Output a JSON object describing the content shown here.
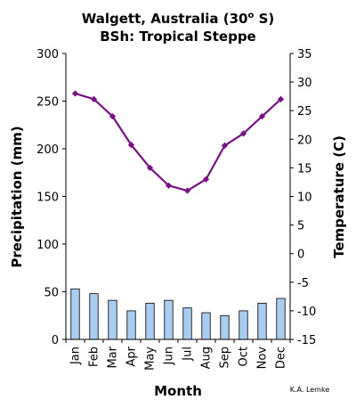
{
  "chart_data": {
    "type": "bar",
    "title_line1": "Walgett, Australia (30",
    "title_deg": "o",
    "title_line1_end": " S)",
    "title_line2": "BSh: Tropical Steppe",
    "xlabel": "Month",
    "ylabel_left": "Precipitation (mm)",
    "ylabel_right": "Temperature (C)",
    "credit": "K.A. Lemke",
    "categories": [
      "Jan",
      "Feb",
      "Mar",
      "Apr",
      "May",
      "Jun",
      "Jul",
      "Aug",
      "Sep",
      "Oct",
      "Nov",
      "Dec"
    ],
    "series": [
      {
        "type": "bar",
        "axis": "left",
        "color": "#a8cdf0",
        "values": [
          53,
          48,
          41,
          30,
          38,
          41,
          33,
          28,
          25,
          30,
          38,
          43
        ]
      },
      {
        "type": "line",
        "axis": "right",
        "color": "#7b0f8a",
        "values": [
          28.0,
          27.0,
          24.0,
          19.0,
          15.0,
          11.9,
          11.0,
          13.0,
          18.9,
          21.0,
          24.0,
          27.0
        ]
      }
    ],
    "ylim_left": [
      0,
      300
    ],
    "yticks_left": [
      0,
      50,
      100,
      150,
      200,
      250,
      300
    ],
    "ylim_right": [
      -15,
      35
    ],
    "yticks_right": [
      -15,
      -10,
      -5,
      0,
      5,
      10,
      15,
      20,
      25,
      30,
      35
    ],
    "grid": false
  }
}
